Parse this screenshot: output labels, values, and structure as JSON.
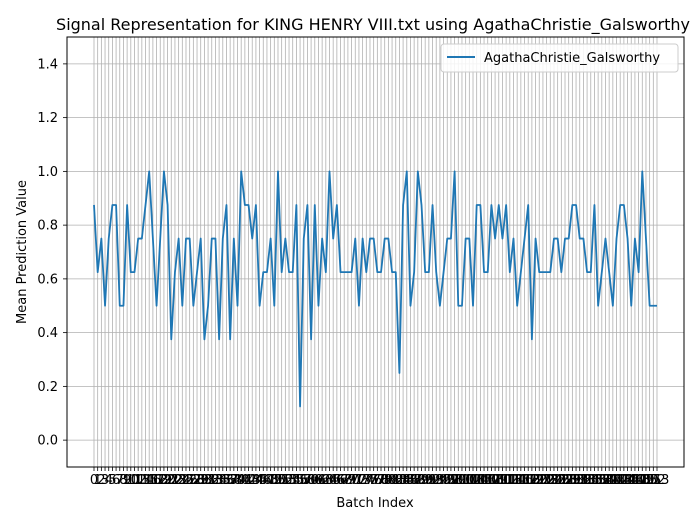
{
  "chart_data": {
    "type": "line",
    "title": "Signal Representation for KING HENRY VIII.txt using AgathaChristie_Galsworthy",
    "xlabel": "Batch Index",
    "ylabel": "Mean Prediction Value",
    "ylim": [
      -0.1,
      1.5
    ],
    "yticks": [
      "0.0",
      "0.2",
      "0.4",
      "0.6",
      "0.8",
      "1.0",
      "1.2",
      "1.4"
    ],
    "grid": true,
    "legend_position": "top-right",
    "series": [
      {
        "name": "AgathaChristie_Galsworthy",
        "color": "#1f77b4",
        "values": [
          0.875,
          0.625,
          0.75,
          0.5,
          0.75,
          0.875,
          0.875,
          0.5,
          0.5,
          0.875,
          0.625,
          0.625,
          0.75,
          0.75,
          0.875,
          1.0,
          0.75,
          0.5,
          0.75,
          1.0,
          0.875,
          0.375,
          0.625,
          0.75,
          0.5,
          0.75,
          0.75,
          0.5,
          0.625,
          0.75,
          0.375,
          0.5,
          0.75,
          0.75,
          0.375,
          0.75,
          0.875,
          0.375,
          0.75,
          0.5,
          1.0,
          0.875,
          0.875,
          0.75,
          0.875,
          0.5,
          0.625,
          0.625,
          0.75,
          0.5,
          1.0,
          0.625,
          0.75,
          0.625,
          0.625,
          0.875,
          0.125,
          0.75,
          0.875,
          0.375,
          0.875,
          0.5,
          0.75,
          0.625,
          1.0,
          0.75,
          0.875,
          0.625,
          0.625,
          0.625,
          0.625,
          0.75,
          0.5,
          0.75,
          0.625,
          0.75,
          0.75,
          0.625,
          0.625,
          0.75,
          0.75,
          0.625,
          0.625,
          0.25,
          0.875,
          1.0,
          0.5,
          0.625,
          1.0,
          0.875,
          0.625,
          0.625,
          0.875,
          0.625,
          0.5,
          0.625,
          0.75,
          0.75,
          1.0,
          0.5,
          0.5,
          0.75,
          0.75,
          0.5,
          0.875,
          0.875,
          0.625,
          0.625,
          0.875,
          0.75,
          0.875,
          0.75,
          0.875,
          0.625,
          0.75,
          0.5,
          0.625,
          0.75,
          0.875,
          0.375,
          0.75,
          0.625,
          0.625,
          0.625,
          0.625,
          0.75,
          0.75,
          0.625,
          0.75,
          0.75,
          0.875,
          0.875,
          0.75,
          0.75,
          0.625,
          0.625,
          0.875,
          0.5,
          0.625,
          0.75,
          0.625,
          0.5,
          0.75,
          0.875,
          0.875,
          0.75,
          0.5,
          0.75,
          0.625,
          1.0,
          0.75,
          0.5,
          0.5,
          0.5
        ]
      }
    ]
  }
}
